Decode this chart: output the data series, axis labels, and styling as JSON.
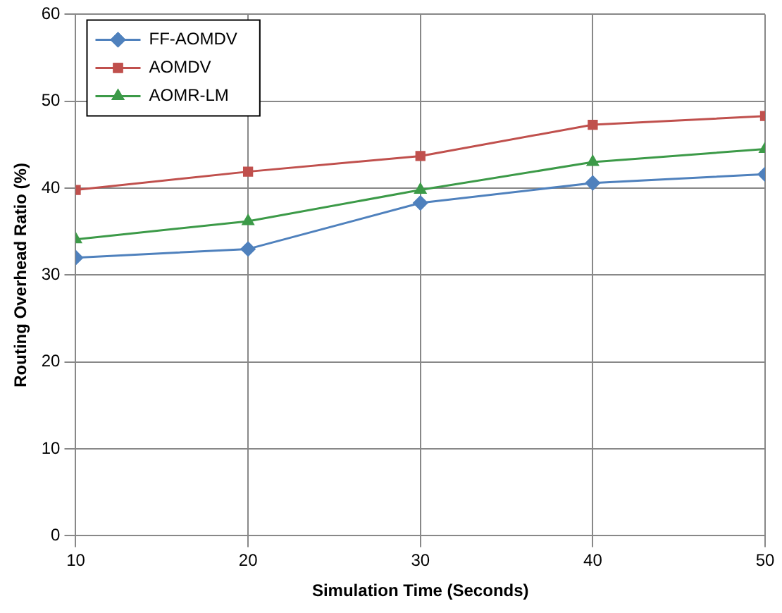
{
  "chart_data": {
    "type": "line",
    "xlabel": "Simulation Time (Seconds)",
    "ylabel": "Routing Overhead Ratio (%)",
    "x": [
      10,
      20,
      30,
      40,
      50
    ],
    "xlim": [
      10,
      50
    ],
    "xticks": [
      10,
      20,
      30,
      40,
      50
    ],
    "ylim": [
      0,
      60
    ],
    "yticks": [
      0,
      10,
      20,
      30,
      40,
      50,
      60
    ],
    "grid": true,
    "legend": "top left",
    "line_style": "solid",
    "series": [
      {
        "name": "FF-AOMDV",
        "color": "#4f81bd",
        "marker": "diamond",
        "values": [
          32,
          33,
          38.3,
          40.6,
          41.6
        ]
      },
      {
        "name": "AOMDV",
        "color": "#c0504d",
        "marker": "square",
        "values": [
          39.8,
          41.9,
          43.7,
          47.3,
          48.3
        ]
      },
      {
        "name": "AOMR-LM",
        "color": "#3c9a48",
        "marker": "triangle",
        "values": [
          34.1,
          36.2,
          39.8,
          43,
          44.5
        ]
      }
    ]
  }
}
